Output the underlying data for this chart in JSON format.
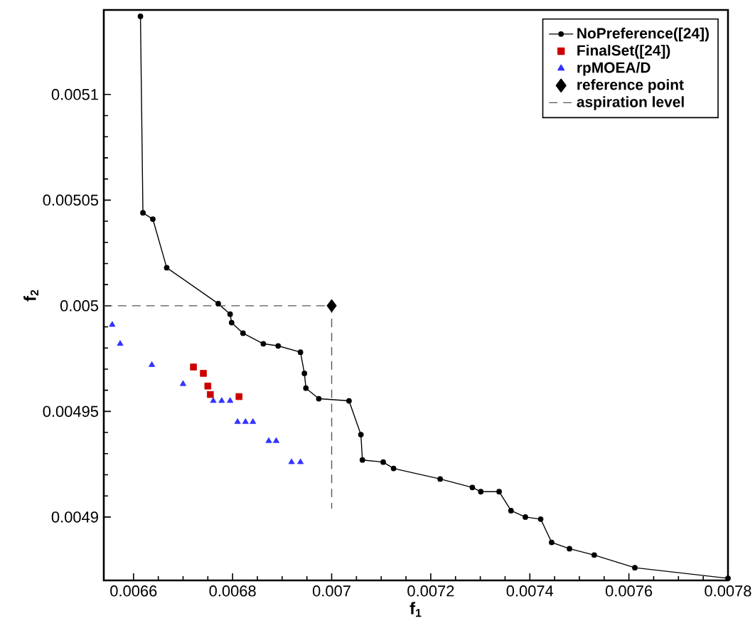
{
  "chart_data": {
    "type": "line",
    "xlabel": "f$_{1}$",
    "ylabel": "f$_{2}$",
    "xlim": [
      0.00654,
      0.0078
    ],
    "ylim": [
      0.00487,
      0.00514
    ],
    "xticks": [
      0.0066,
      0.0068,
      0.007,
      0.0072,
      0.0074,
      0.0076,
      0.0078
    ],
    "yticks": [
      0.0049,
      0.00495,
      0.005,
      0.00505,
      0.0051
    ],
    "grid": false,
    "legend": "top right",
    "series": [
      {
        "name": "NoPreference([24])",
        "marker": "circle",
        "line_style": "solid",
        "color": "#000000",
        "x": [
          0.006614,
          0.006619,
          0.006639,
          0.006667,
          0.006771,
          0.006795,
          0.006798,
          0.006821,
          0.006862,
          0.006892,
          0.006937,
          0.006945,
          0.006948,
          0.006974,
          0.007035,
          0.007059,
          0.007062,
          0.007104,
          0.007125,
          0.007219,
          0.007284,
          0.007301,
          0.007338,
          0.007362,
          0.007391,
          0.007422,
          0.007444,
          0.00748,
          0.00753,
          0.007612,
          0.0078
        ],
        "values": [
          0.005137,
          0.005044,
          0.005041,
          0.005018,
          0.005001,
          0.004996,
          0.004992,
          0.004987,
          0.004982,
          0.004981,
          0.004978,
          0.004968,
          0.004961,
          0.004956,
          0.004955,
          0.004939,
          0.004927,
          0.004926,
          0.004923,
          0.004918,
          0.004914,
          0.004912,
          0.004912,
          0.004903,
          0.0049,
          0.004899,
          0.004888,
          0.004885,
          0.004882,
          0.004876,
          0.004871
        ]
      },
      {
        "name": "FinalSet([24])",
        "type": "scatter",
        "marker": "square",
        "color": "#cc0000",
        "x": [
          0.006721,
          0.006741,
          0.00675,
          0.006755,
          0.006813
        ],
        "values": [
          0.004971,
          0.004968,
          0.004962,
          0.004958,
          0.004957
        ]
      },
      {
        "name": "rpMOEA/D",
        "type": "scatter",
        "marker": "triangle",
        "color": "#3333ff",
        "x": [
          0.006557,
          0.006573,
          0.006637,
          0.0067,
          0.006761,
          0.006778,
          0.006795,
          0.00681,
          0.006826,
          0.006841,
          0.006873,
          0.006888,
          0.006919,
          0.006937
        ],
        "values": [
          0.004991,
          0.004982,
          0.004972,
          0.004963,
          0.004955,
          0.004955,
          0.004955,
          0.004945,
          0.004945,
          0.004945,
          0.004936,
          0.004936,
          0.004926,
          0.004926
        ]
      },
      {
        "name": "reference point",
        "type": "scatter",
        "marker": "diamond",
        "color": "#000000",
        "x": [
          0.007
        ],
        "values": [
          0.005
        ]
      },
      {
        "name": "aspiration level",
        "marker": "none",
        "line_style": "dashed",
        "color": "#555555",
        "x": [
          0.00654,
          0.007,
          0.007
        ],
        "values": [
          0.005,
          0.005,
          0.004904
        ]
      }
    ]
  }
}
